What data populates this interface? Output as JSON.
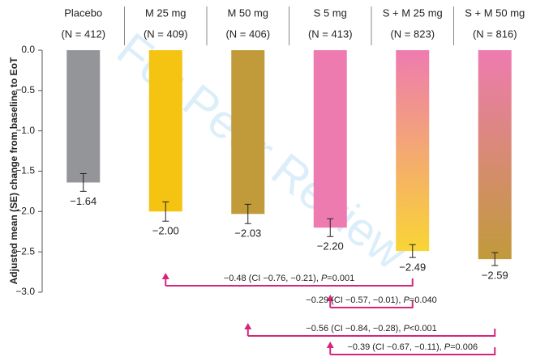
{
  "chart_data": {
    "type": "bar",
    "y_label": "Adjusted mean (SE) change from baseline to EoT",
    "watermark": "For Peer Review",
    "categories": [
      "Placebo",
      "M 25 mg",
      "M 50 mg",
      "S 5 mg",
      "S + M 25 mg",
      "S + M 50 mg"
    ],
    "n_labels": [
      "(N = 412)",
      "(N = 409)",
      "(N = 406)",
      "(N = 413)",
      "(N = 823)",
      "(N = 816)"
    ],
    "values": [
      -1.64,
      -2.0,
      -2.03,
      -2.2,
      -2.49,
      -2.59
    ],
    "value_labels": [
      "−1.64",
      "−2.00",
      "−2.03",
      "−2.20",
      "−2.49",
      "−2.59"
    ],
    "errors": [
      0.11,
      0.12,
      0.12,
      0.11,
      0.08,
      0.08
    ],
    "colors": [
      "#939598",
      "#f5c312",
      "#c19a3a",
      "#ee7bb0",
      [
        "#ee7bb0",
        "#f9d535"
      ],
      [
        "#ee7bb0",
        "#c19a3a"
      ]
    ],
    "ylim": [
      -3,
      0
    ],
    "yticks": [
      {
        "value": 0,
        "label": "0.0"
      },
      {
        "value": -0.5,
        "label": "−0.5"
      },
      {
        "value": -1,
        "label": "−1.0"
      },
      {
        "value": -1.5,
        "label": "−1.5"
      },
      {
        "value": -2,
        "label": "−2.0"
      },
      {
        "value": -2.5,
        "label": "−2.5"
      },
      {
        "value": -3,
        "label": "−3.0"
      }
    ],
    "comparisons": [
      {
        "from": 1,
        "to": 4,
        "text": [
          "−0.48 (CI −0.76, −0.21), ",
          "P",
          "=0.001"
        ]
      },
      {
        "from": 3,
        "to": 4,
        "text": [
          "−0.29 (CI −0.57, −0.01), ",
          "P",
          "=0.040"
        ]
      },
      {
        "from": 2,
        "to": 5,
        "text": [
          "−0.56 (CI −0.84, −0.28), ",
          "P",
          "<0.001"
        ]
      },
      {
        "from": 3,
        "to": 5,
        "text": [
          "−0.39 (CI −0.67, −0.11), ",
          "P",
          "=0.006"
        ]
      }
    ],
    "comparison_color": "#d6267a"
  }
}
